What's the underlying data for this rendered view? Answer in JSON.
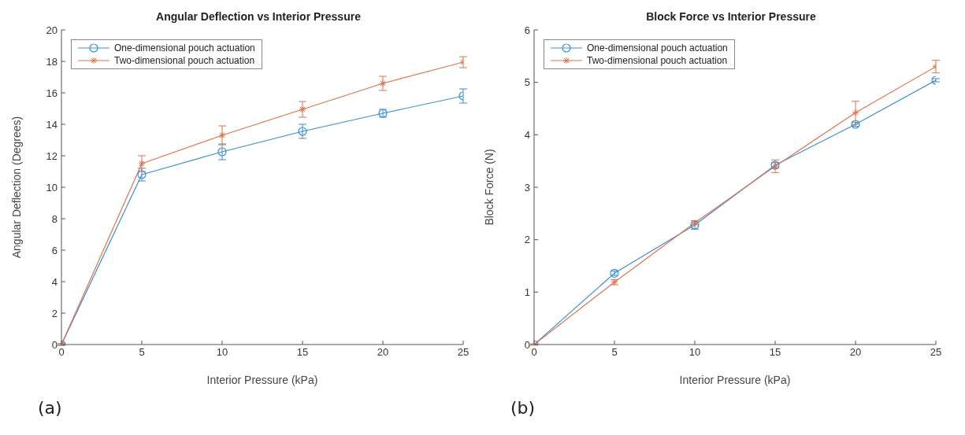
{
  "chart_data": [
    {
      "type": "line",
      "title": "Angular Deflection vs Interior Pressure",
      "xlabel": "Interior Pressure (kPa)",
      "ylabel": "Angular Deflection (Degrees)",
      "x": [
        0,
        5,
        10,
        15,
        20,
        25
      ],
      "xlim": [
        0,
        25
      ],
      "xticks": [
        0,
        5,
        10,
        15,
        20,
        25
      ],
      "ylim": [
        0,
        20
      ],
      "yticks": [
        0,
        2,
        4,
        6,
        8,
        10,
        12,
        14,
        16,
        18,
        20
      ],
      "grid": false,
      "legend": "top left",
      "annotations": [
        "(a)"
      ],
      "series": [
        {
          "name": "One-dimensional pouch actuation",
          "color": "#3a8fd0",
          "marker": "circle",
          "values": [
            0,
            10.8,
            12.25,
            13.55,
            14.7,
            15.8
          ],
          "errors": [
            0.05,
            0.4,
            0.5,
            0.45,
            0.25,
            0.45
          ]
        },
        {
          "name": "Two-dimensional pouch actuation",
          "color": "#e0724a",
          "marker": "cross",
          "values": [
            0,
            11.5,
            13.3,
            14.95,
            16.6,
            17.95
          ],
          "errors": [
            0.05,
            0.5,
            0.6,
            0.5,
            0.45,
            0.35
          ]
        }
      ]
    },
    {
      "type": "line",
      "title": "Block Force vs Interior Pressure",
      "xlabel": "Interior Pressure (kPa)",
      "ylabel": "Block Force (N)",
      "x": [
        0,
        5,
        10,
        15,
        20,
        25
      ],
      "xlim": [
        0,
        25
      ],
      "xticks": [
        0,
        5,
        10,
        15,
        20,
        25
      ],
      "ylim": [
        0,
        6
      ],
      "yticks": [
        0,
        1,
        2,
        3,
        4,
        5,
        6
      ],
      "grid": false,
      "legend": "top left",
      "annotations": [
        "(b)"
      ],
      "series": [
        {
          "name": "One-dimensional pouch actuation",
          "color": "#3a8fd0",
          "marker": "circle",
          "values": [
            0,
            1.36,
            2.28,
            3.42,
            4.2,
            5.04
          ],
          "errors": [
            0.01,
            0.04,
            0.08,
            0.05,
            0.04,
            0.03
          ]
        },
        {
          "name": "Two-dimensional pouch actuation",
          "color": "#e0724a",
          "marker": "cross",
          "values": [
            0,
            1.19,
            2.32,
            3.4,
            4.42,
            5.3
          ],
          "errors": [
            0.01,
            0.05,
            0.04,
            0.12,
            0.22,
            0.12
          ]
        }
      ]
    }
  ]
}
